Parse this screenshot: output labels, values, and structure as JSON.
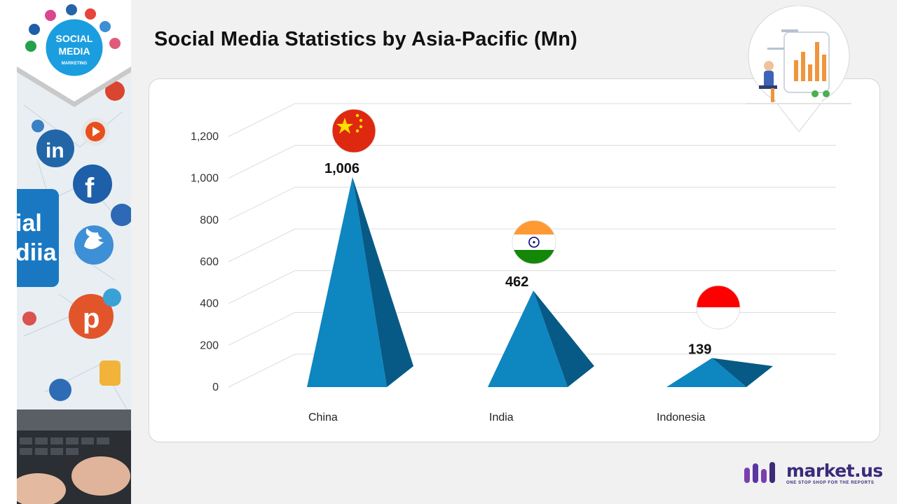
{
  "page": {
    "title": "Social Media Statistics by Asia-Pacific (Mn)"
  },
  "hero": {
    "badge_line1": "SOCIAL",
    "badge_line2": "MEDIA",
    "badge_line3": "MARKETING",
    "screen_line1": "ial",
    "screen_line2": "diia"
  },
  "brand": {
    "name": "market.us",
    "tagline": "ONE STOP SHOP FOR THE REPORTS"
  },
  "colors": {
    "bar_front": "#0e86c0",
    "bar_side": "#075a85",
    "grid": "#dcdcdc",
    "brand": "#3b2b7a",
    "brand_accent": "#7b3fb0"
  },
  "chart_data": {
    "type": "bar",
    "style": "3d-pyramid",
    "categories": [
      "China",
      "India",
      "Indonesia"
    ],
    "values": [
      1006,
      462,
      139
    ],
    "value_labels": [
      "1,006",
      "462",
      "139"
    ],
    "ylim": [
      0,
      1200
    ],
    "yticks": [
      0,
      200,
      400,
      600,
      800,
      1000,
      1200
    ],
    "ytick_labels": [
      "0",
      "200",
      "400",
      "600",
      "800",
      "1,000",
      "1,200"
    ],
    "grid": true,
    "legend": "none",
    "category_icons": [
      "china-flag",
      "india-flag",
      "indonesia-flag"
    ]
  }
}
